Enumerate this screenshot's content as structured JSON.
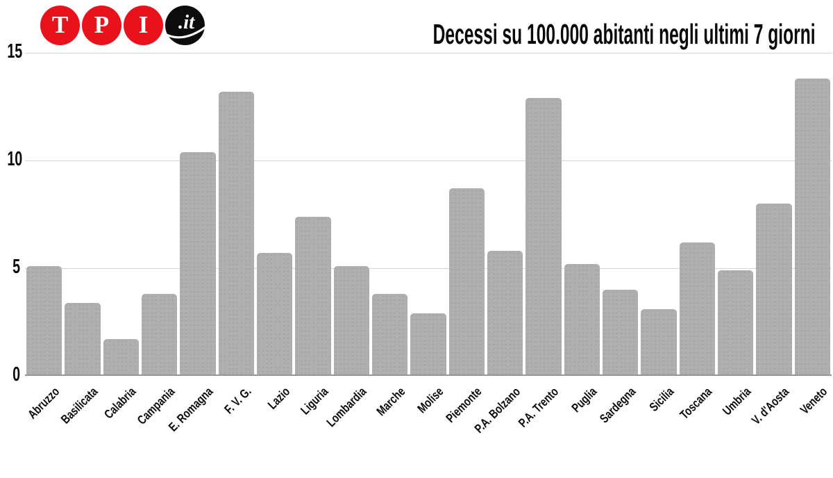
{
  "logo": {
    "circles": [
      {
        "label": "T",
        "color": "#e8121c"
      },
      {
        "label": "P",
        "color": "#e8121c"
      },
      {
        "label": "I",
        "color": "#e8121c"
      },
      {
        "label": ".it",
        "color": "#0c0c0c"
      }
    ]
  },
  "chart_data": {
    "type": "bar",
    "title": "Decessi su 100.000 abitanti negli ultimi 7 giorni",
    "categories": [
      "Abruzzo",
      "Basilicata",
      "Calabria",
      "Campania",
      "E. Romagna",
      "F. V. G.",
      "Lazio",
      "Liguria",
      "Lombardia",
      "Marche",
      "Molise",
      "Piemonte",
      "P.A. Bolzano",
      "P.A. Trento",
      "Puglia",
      "Sardegna",
      "Sicilia",
      "Toscana",
      "Umbria",
      "V. d'Aosta",
      "Veneto"
    ],
    "values": [
      5.1,
      3.4,
      1.7,
      3.8,
      10.4,
      13.2,
      5.7,
      7.4,
      5.1,
      3.8,
      2.9,
      8.7,
      5.8,
      12.9,
      5.2,
      4.0,
      3.1,
      6.2,
      4.9,
      8.0,
      13.8
    ],
    "xlabel": "",
    "ylabel": "",
    "ylim": [
      0,
      15
    ],
    "yticks": [
      0,
      5,
      10,
      15
    ],
    "grid": true,
    "legend": "none",
    "bar_color": "#afafaf",
    "gridline_color": "#d5d5d5",
    "axis_color": "#969696",
    "label_color": "#0a0a0a",
    "background": "#ffffff"
  }
}
